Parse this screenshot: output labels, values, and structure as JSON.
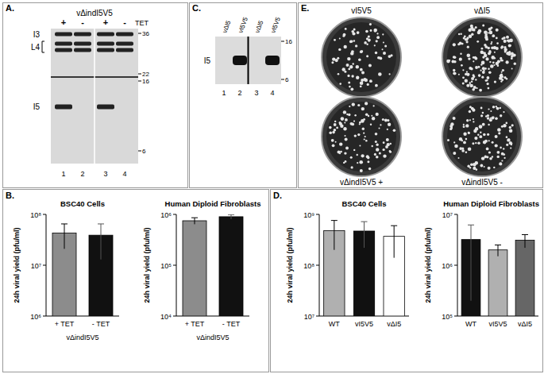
{
  "panel_labels": {
    "A": "A.",
    "B": "B.",
    "C": "C.",
    "D": "D.",
    "E": "E."
  },
  "blot_A": {
    "title": "vΔindI5V5",
    "treatment": "TET",
    "lanes": [
      "+",
      "-",
      "+",
      "-"
    ],
    "lane_numbers": [
      1,
      2,
      3,
      4
    ],
    "bands": [
      {
        "name": "I3",
        "present": [
          true,
          true,
          true,
          true
        ]
      },
      {
        "name": "L4",
        "present": [
          true,
          true,
          true,
          true
        ]
      },
      {
        "name": "I5",
        "present": [
          true,
          false,
          true,
          false
        ]
      }
    ],
    "markers": [
      36,
      22,
      16,
      6
    ]
  },
  "blot_C": {
    "lanes": [
      "vΔI5",
      "vI5V5",
      "vΔI5",
      "vI5V5"
    ],
    "lane_numbers": [
      1,
      2,
      3,
      4
    ],
    "band": "I5",
    "present": [
      false,
      true,
      false,
      true
    ],
    "markers": [
      16,
      6
    ]
  },
  "plates_E": {
    "labels": [
      "vI5V5",
      "vΔI5",
      "vΔindI5V5 +",
      "vΔindI5V5 -"
    ]
  },
  "chart_data": [
    {
      "type": "bar",
      "title": "BSC40 Cells",
      "ylabel": "24h viral yield (pfu/ml)",
      "xlabel": "vΔindI5V5",
      "categories": [
        "+ TET",
        "- TET"
      ],
      "values": [
        43000000,
        39000000
      ],
      "error": [
        22000000,
        26000000
      ],
      "colors": [
        "#8c8c8c",
        "#111111"
      ],
      "log": "y",
      "ylim": [
        1000000,
        100000000
      ],
      "yticks": [
        {
          "value": 1000000,
          "label": "10⁶"
        },
        {
          "value": 10000000,
          "label": "10⁷"
        },
        {
          "value": 100000000,
          "label": "10⁸"
        }
      ]
    },
    {
      "type": "bar",
      "title": "Human Diploid Fibroblasts",
      "ylabel": "24h viral yield (pfu/ml)",
      "xlabel": "vΔindI5V5",
      "categories": [
        "+ TET",
        "- TET"
      ],
      "values": [
        750000,
        900000
      ],
      "error": [
        110000,
        90000
      ],
      "colors": [
        "#8c8c8c",
        "#111111"
      ],
      "log": "y",
      "ylim": [
        10000,
        1000000
      ],
      "yticks": [
        {
          "value": 10000,
          "label": "10⁴"
        },
        {
          "value": 100000,
          "label": "10⁵"
        },
        {
          "value": 1000000,
          "label": "10⁶"
        }
      ]
    },
    {
      "type": "bar",
      "title": "BSC40 Cells",
      "ylabel": "24h viral yield (pfu/ml)",
      "categories": [
        "WT",
        "vI5V5",
        "vΔI5"
      ],
      "values": [
        480000000,
        470000000,
        370000000
      ],
      "error": [
        280000000,
        250000000,
        230000000
      ],
      "colors": [
        "#b0b0b0",
        "#111111",
        "#ffffff"
      ],
      "log": "y",
      "ylim": [
        10000000,
        1000000000
      ],
      "yticks": [
        {
          "value": 10000000,
          "label": "10⁷"
        },
        {
          "value": 100000000,
          "label": "10⁸"
        },
        {
          "value": 1000000000,
          "label": "10⁹"
        }
      ]
    },
    {
      "type": "bar",
      "title": "Human Diploid Fibroblasts",
      "ylabel": "24h viral yield (pfu/ml)",
      "categories": [
        "WT",
        "vI5V5",
        "vΔI5"
      ],
      "values": [
        3200000,
        2000000,
        3100000
      ],
      "error": [
        3000000,
        500000,
        900000
      ],
      "colors": [
        "#111111",
        "#b0b0b0",
        "#666666"
      ],
      "log": "y",
      "ylim": [
        100000,
        10000000
      ],
      "yticks": [
        {
          "value": 100000,
          "label": "10⁵"
        },
        {
          "value": 1000000,
          "label": "10⁶"
        },
        {
          "value": 10000000,
          "label": "10⁷"
        }
      ]
    }
  ]
}
